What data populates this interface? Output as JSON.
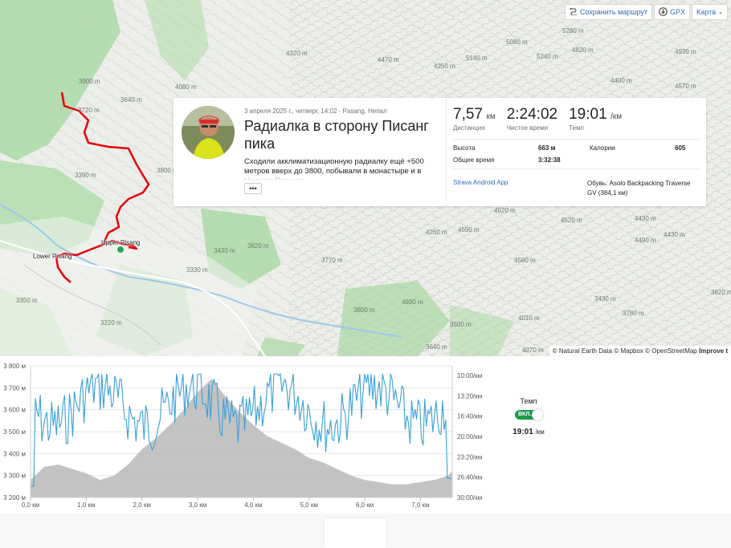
{
  "map": {
    "controls": {
      "save_route": "Сохранить маршрут",
      "gpx": "GPX",
      "map_type": "Карта"
    },
    "contour_labels": [
      "3900 m",
      "3720 m",
      "3390 m",
      "3800 m",
      "3640 m",
      "3820 m",
      "3430 m",
      "3330 m",
      "3350 m",
      "3220 m",
      "3640 m",
      "3770 m",
      "4080 m",
      "4320 m",
      "4260 m",
      "4470 m",
      "4590 m",
      "4250 m",
      "4620 m",
      "4430 m",
      "4580 m",
      "4690 m",
      "4010 m",
      "3800 m",
      "3430 m",
      "4070 m",
      "5140 m",
      "5080 m",
      "5240 m",
      "5280 m",
      "4820 m",
      "4400 m",
      "4570 m",
      "4490 m",
      "4930 m",
      "4430 m",
      "3820 m",
      "4520 m",
      "3780 m",
      "3500 m"
    ],
    "places": {
      "upper": "Upper Pisang",
      "lower": "Lower Pisang"
    },
    "attribution": {
      "ne": "© Natural Earth Data",
      "mapbox": "© Mapbox",
      "osm": "© OpenStreetMap",
      "improve": "Improve t"
    },
    "route_color": "#e8000b"
  },
  "activity": {
    "date": "3 апреля 2025 г., четверг, 14:02 · Pasang, Непал",
    "title": "Радиалка в сторону Писанг пика",
    "description": "Сходили акклиматизационную радиалку ещё +500 метров вверх до 3800, побывали в монастыре и в Нижнем Писанге",
    "more_label": "•••",
    "stats": {
      "distance_value": "7,57",
      "distance_unit": "км",
      "distance_label": "Дистанция",
      "moving_time_value": "2:24:02",
      "moving_time_label": "Чистое время",
      "pace_value": "19:01",
      "pace_unit": "/км",
      "pace_label": "Темп"
    },
    "details": {
      "elevation_label": "Высота",
      "elevation_value": "663 м",
      "calories_label": "Калории",
      "calories_value": "605",
      "elapsed_label": "Общее время",
      "elapsed_value": "3:32:38"
    },
    "device": "Strava Android App",
    "shoes_label": "Обувь:",
    "shoes_value": "Asolo Backpacking Traverse GV",
    "shoes_distance": "(384,1 км)"
  },
  "chart_data": {
    "type": "area",
    "x": [
      0.0,
      0.25,
      0.5,
      0.75,
      1.0,
      1.25,
      1.5,
      1.75,
      2.0,
      2.25,
      2.5,
      2.75,
      3.0,
      3.25,
      3.5,
      3.75,
      4.0,
      4.25,
      4.5,
      4.75,
      5.0,
      5.25,
      5.5,
      5.75,
      6.0,
      6.25,
      6.5,
      6.75,
      7.0,
      7.25,
      7.5,
      7.57
    ],
    "elevation": [
      3280,
      3340,
      3350,
      3330,
      3310,
      3280,
      3300,
      3350,
      3420,
      3470,
      3530,
      3600,
      3680,
      3740,
      3660,
      3590,
      3530,
      3480,
      3450,
      3420,
      3380,
      3360,
      3330,
      3300,
      3280,
      3270,
      3260,
      3260,
      3270,
      3280,
      3300,
      3320
    ],
    "pace_series_name": "Темп",
    "elevation_ticks": [
      "3 200 м",
      "3 300 м",
      "3 400 м",
      "3 500 м",
      "3 600 м",
      "3 700 м",
      "3 800 м"
    ],
    "distance_ticks": [
      "0,0 км",
      "1,0 км",
      "2,0 км",
      "3,0 км",
      "4,0 км",
      "5,0 км",
      "6,0 км",
      "7,0 км"
    ],
    "pace_ticks": [
      "10:00/км",
      "13:20/км",
      "16:40/км",
      "20:00/км",
      "23:20/км",
      "26:40/км",
      "30:00/км"
    ],
    "ylim": [
      3200,
      3800
    ],
    "xlim": [
      0,
      7.57
    ],
    "colors": {
      "elevation_fill": "#b9b9b9",
      "pace_line": "#3aa0d8"
    }
  },
  "pace_panel": {
    "label": "Темп",
    "toggle_label": "ВКЛ.",
    "value": "19:01",
    "unit": "/км"
  }
}
